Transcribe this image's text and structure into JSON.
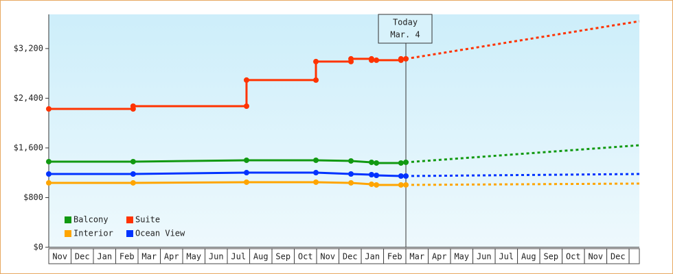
{
  "chart_data": {
    "type": "line",
    "categories": [
      "Nov",
      "Dec",
      "Jan",
      "Feb",
      "Mar",
      "Apr",
      "May",
      "Jun",
      "Jul",
      "Aug",
      "Sep",
      "Oct",
      "Nov",
      "Dec",
      "Jan",
      "Feb",
      "Mar",
      "Apr",
      "May",
      "Jun",
      "Jul",
      "Aug",
      "Sep",
      "Oct",
      "Nov",
      "Dec"
    ],
    "xlim": [
      0,
      26.46
    ],
    "ylim": [
      0,
      3750
    ],
    "yticks": [
      {
        "value": 0,
        "label": "$0"
      },
      {
        "value": 800,
        "label": "$800"
      },
      {
        "value": 1600,
        "label": "$1,600"
      },
      {
        "value": 2400,
        "label": "$2,400"
      },
      {
        "value": 3200,
        "label": "$3,200"
      }
    ],
    "today": {
      "x": 16.0,
      "label": "Today",
      "date": "Mar. 4"
    },
    "series": [
      {
        "name": "Balcony",
        "color": "#119911",
        "x": [
          0,
          3.78,
          8.86,
          11.97,
          13.54,
          14.46,
          14.68,
          15.78,
          16.0
        ],
        "values": [
          1379,
          1379,
          1401,
          1401,
          1390,
          1368,
          1357,
          1357,
          1368
        ],
        "forecast_x": [
          16.0,
          26.46
        ],
        "forecast_values": [
          1368,
          1643
        ]
      },
      {
        "name": "Suite",
        "color": "#ff3300",
        "x": [
          0,
          3.78,
          3.78,
          8.86,
          8.86,
          11.97,
          11.97,
          13.54,
          13.54,
          14.46,
          14.46,
          14.68,
          15.78,
          15.78,
          16.0
        ],
        "values": [
          2228,
          2228,
          2272,
          2272,
          2692,
          2692,
          2990,
          2990,
          3034,
          3034,
          3012,
          3012,
          3012,
          3034,
          3034
        ],
        "forecast_x": [
          16.0,
          26.46
        ],
        "forecast_values": [
          3034,
          3640
        ]
      },
      {
        "name": "Interior",
        "color": "#ffa500",
        "x": [
          0,
          3.78,
          8.86,
          11.97,
          13.54,
          14.46,
          14.68,
          15.78,
          16.0
        ],
        "values": [
          1037,
          1037,
          1048,
          1048,
          1037,
          1015,
          1004,
          1004,
          1004
        ],
        "forecast_x": [
          16.0,
          26.46
        ],
        "forecast_values": [
          1004,
          1026
        ]
      },
      {
        "name": "Ocean View",
        "color": "#0033ff",
        "x": [
          0,
          3.78,
          8.86,
          11.97,
          13.54,
          14.46,
          14.68,
          15.78,
          16.0
        ],
        "values": [
          1180,
          1180,
          1202,
          1202,
          1180,
          1169,
          1158,
          1147,
          1147
        ],
        "forecast_x": [
          16.0,
          26.46
        ],
        "forecast_values": [
          1147,
          1180
        ]
      }
    ]
  }
}
